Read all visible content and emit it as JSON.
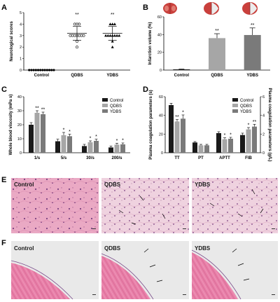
{
  "panels": {
    "A": "A",
    "B": "B",
    "C": "C",
    "D": "D",
    "E": "E",
    "F": "F"
  },
  "colors": {
    "control": "#1a1a1a",
    "qdbs": "#a6a6a6",
    "ydbs": "#7a7a7a",
    "he_light": "#f2c6d6",
    "he_pink": "#e88fb0",
    "he_dark": "#c24f7f",
    "he_nuclei": "#6a3a7a",
    "brain_red": "#d9534f"
  },
  "chart_data": [
    {
      "panel": "A",
      "type": "scatter",
      "ylabel": "Neurological scores",
      "categories": [
        "Control",
        "QDBS",
        "YDBS"
      ],
      "ylim": [
        0,
        5
      ],
      "yticks": [
        0,
        1,
        2,
        3,
        4,
        5
      ],
      "means": [
        0,
        3.2,
        3.2
      ],
      "sd": [
        0,
        0.6,
        0.6
      ],
      "points": [
        [
          0,
          0,
          0,
          0,
          0,
          0,
          0,
          0,
          0,
          0,
          0,
          0
        ],
        [
          4,
          4,
          4,
          3,
          3,
          3,
          3,
          3,
          3,
          3,
          2.5,
          2
        ],
        [
          4,
          4,
          4,
          3,
          3,
          3,
          3,
          3,
          3,
          3,
          2.5,
          2
        ]
      ],
      "markers": [
        "circle",
        "circle",
        "triangle"
      ],
      "annotations": [
        "",
        "**",
        "**"
      ]
    },
    {
      "panel": "B",
      "type": "bar",
      "ylabel": "Infarction volume (%)",
      "categories": [
        "Control",
        "QDBS",
        "YDBS"
      ],
      "ylim": [
        0,
        60
      ],
      "yticks": [
        0,
        20,
        40,
        60
      ],
      "values": [
        0.8,
        36,
        39.5
      ],
      "errors": [
        0.3,
        5,
        8
      ],
      "annotations": [
        "",
        "**",
        "**"
      ]
    },
    {
      "panel": "C",
      "type": "bar",
      "ylabel": "Whole blood viscosity (mPa s)",
      "categories": [
        "1/s",
        "5/s",
        "30/s",
        "200/s"
      ],
      "ylim": [
        0,
        40
      ],
      "yticks": [
        0,
        10,
        20,
        30,
        40
      ],
      "series": [
        {
          "name": "Control",
          "values": [
            20,
            8.2,
            4.8,
            3.8
          ],
          "errors": [
            1.5,
            1.5,
            1.2,
            1
          ],
          "annotations": [
            "",
            "",
            "",
            ""
          ]
        },
        {
          "name": "QDBS",
          "values": [
            28.5,
            12.5,
            7.5,
            5.8
          ],
          "errors": [
            1.5,
            2,
            1,
            1
          ],
          "annotations": [
            "**",
            "*",
            "*",
            "*"
          ]
        },
        {
          "name": "YDBS",
          "values": [
            27.5,
            11.8,
            8.5,
            6
          ],
          "errors": [
            1.5,
            1.5,
            1.2,
            1
          ],
          "annotations": [
            "**",
            "*",
            "*",
            "*"
          ]
        }
      ],
      "legend": "top-right"
    },
    {
      "panel": "D",
      "type": "bar",
      "ylabel": "Plasma coagulation parameters (s)",
      "y2label": "Plasma coagulation parameters (g/L)",
      "categories": [
        "TT",
        "PT",
        "APTT",
        "FIB"
      ],
      "ylim": [
        0,
        60
      ],
      "yticks": [
        0,
        20,
        40,
        60
      ],
      "y2lim": [
        0,
        6
      ],
      "y2ticks": [
        0,
        2,
        4,
        6
      ],
      "series": [
        {
          "name": "Control",
          "values": [
            51,
            11,
            21,
            1.9
          ],
          "errors": [
            2,
            1,
            1.5,
            0.2
          ],
          "annotations": [
            "",
            "",
            "",
            ""
          ]
        },
        {
          "name": "QDBS",
          "values": [
            33.5,
            8,
            14.5,
            2.5
          ],
          "errors": [
            2,
            1,
            1.5,
            0.2
          ],
          "annotations": [
            "**",
            "",
            "*",
            "*"
          ]
        },
        {
          "name": "YDBS",
          "values": [
            36.5,
            8,
            15,
            2.8
          ],
          "errors": [
            4,
            1,
            1.5,
            0.25
          ],
          "annotations": [
            "*",
            "",
            "*",
            "**"
          ]
        }
      ],
      "fib_axis": "right",
      "legend": "top-right"
    }
  ],
  "images": {
    "E": {
      "labels": [
        "Control",
        "QDBS",
        "YDBS"
      ]
    },
    "F": {
      "labels": [
        "Control",
        "QDBS",
        "YDBS"
      ]
    }
  }
}
